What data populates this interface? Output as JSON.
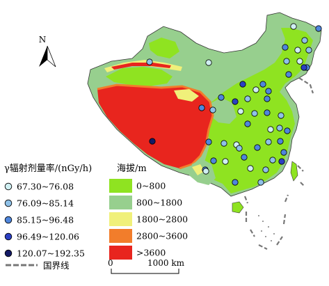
{
  "north_label": "N",
  "dose_legend": {
    "title": "γ辐射剂量率/(nGy/h)",
    "classes": [
      {
        "label": "67.30~76.08",
        "color": "#cfeff2"
      },
      {
        "label": "76.09~85.14",
        "color": "#8fc1e8"
      },
      {
        "label": "85.15~96.48",
        "color": "#4f86dc"
      },
      {
        "label": "96.49~120.06",
        "color": "#2b3fc2"
      },
      {
        "label": "120.07~192.35",
        "color": "#141a66"
      }
    ]
  },
  "elevation_legend": {
    "title": "海拔/m",
    "classes": [
      {
        "label": "0~800",
        "color": "#8fe321"
      },
      {
        "label": "800~1800",
        "color": "#97cf8e"
      },
      {
        "label": "1800~2800",
        "color": "#f0f07a"
      },
      {
        "label": "2800~3600",
        "color": "#f27d2b"
      },
      {
        "label": ">3600",
        "color": "#e8251e"
      }
    ]
  },
  "border_label": "国界线",
  "scale": {
    "start": "0",
    "end": "1000 km"
  },
  "station_sites": [
    {
      "id": "s1",
      "class": 0
    },
    {
      "id": "s2",
      "class": 2
    },
    {
      "id": "s3",
      "class": 1
    },
    {
      "id": "s4",
      "class": 2
    },
    {
      "id": "s5",
      "class": 0
    },
    {
      "id": "s6",
      "class": 1
    },
    {
      "id": "s7",
      "class": 1
    },
    {
      "id": "s8",
      "class": 0
    },
    {
      "id": "s9",
      "class": 2
    },
    {
      "id": "s10",
      "class": 3
    },
    {
      "id": "s11",
      "class": 1
    },
    {
      "id": "s12",
      "class": 0
    },
    {
      "id": "s13",
      "class": 2
    },
    {
      "id": "s14",
      "class": 3
    },
    {
      "id": "s15",
      "class": 2
    },
    {
      "id": "s16",
      "class": 0
    },
    {
      "id": "s17",
      "class": 2
    },
    {
      "id": "s18",
      "class": 2
    },
    {
      "id": "s19",
      "class": 1
    },
    {
      "id": "s20",
      "class": 2
    },
    {
      "id": "s21",
      "class": 3
    },
    {
      "id": "s22",
      "class": 2
    },
    {
      "id": "s23",
      "class": 1
    },
    {
      "id": "s24",
      "class": 0
    },
    {
      "id": "s25",
      "class": 1
    },
    {
      "id": "s26",
      "class": 2
    },
    {
      "id": "s27",
      "class": 1
    },
    {
      "id": "s28",
      "class": 2
    },
    {
      "id": "s29",
      "class": 0
    },
    {
      "id": "s30",
      "class": 1
    },
    {
      "id": "s31",
      "class": 2
    },
    {
      "id": "s32",
      "class": 1
    },
    {
      "id": "s33",
      "class": 2
    },
    {
      "id": "s34",
      "class": 2
    },
    {
      "id": "s35",
      "class": 1
    },
    {
      "id": "s36",
      "class": 0
    },
    {
      "id": "s37",
      "class": 2
    },
    {
      "id": "s38",
      "class": 1
    },
    {
      "id": "s39",
      "class": 4
    },
    {
      "id": "s40",
      "class": 2
    },
    {
      "id": "s41",
      "class": 2
    },
    {
      "id": "s42",
      "class": 1
    },
    {
      "id": "s43",
      "class": 0
    },
    {
      "id": "s44",
      "class": 2
    },
    {
      "id": "s45",
      "class": 1
    },
    {
      "id": "s46",
      "class": 0
    },
    {
      "id": "s47",
      "class": 3
    },
    {
      "id": "s48",
      "class": 1
    },
    {
      "id": "s49",
      "class": 2
    },
    {
      "id": "s50",
      "class": 2
    },
    {
      "id": "s51",
      "class": 0
    }
  ]
}
